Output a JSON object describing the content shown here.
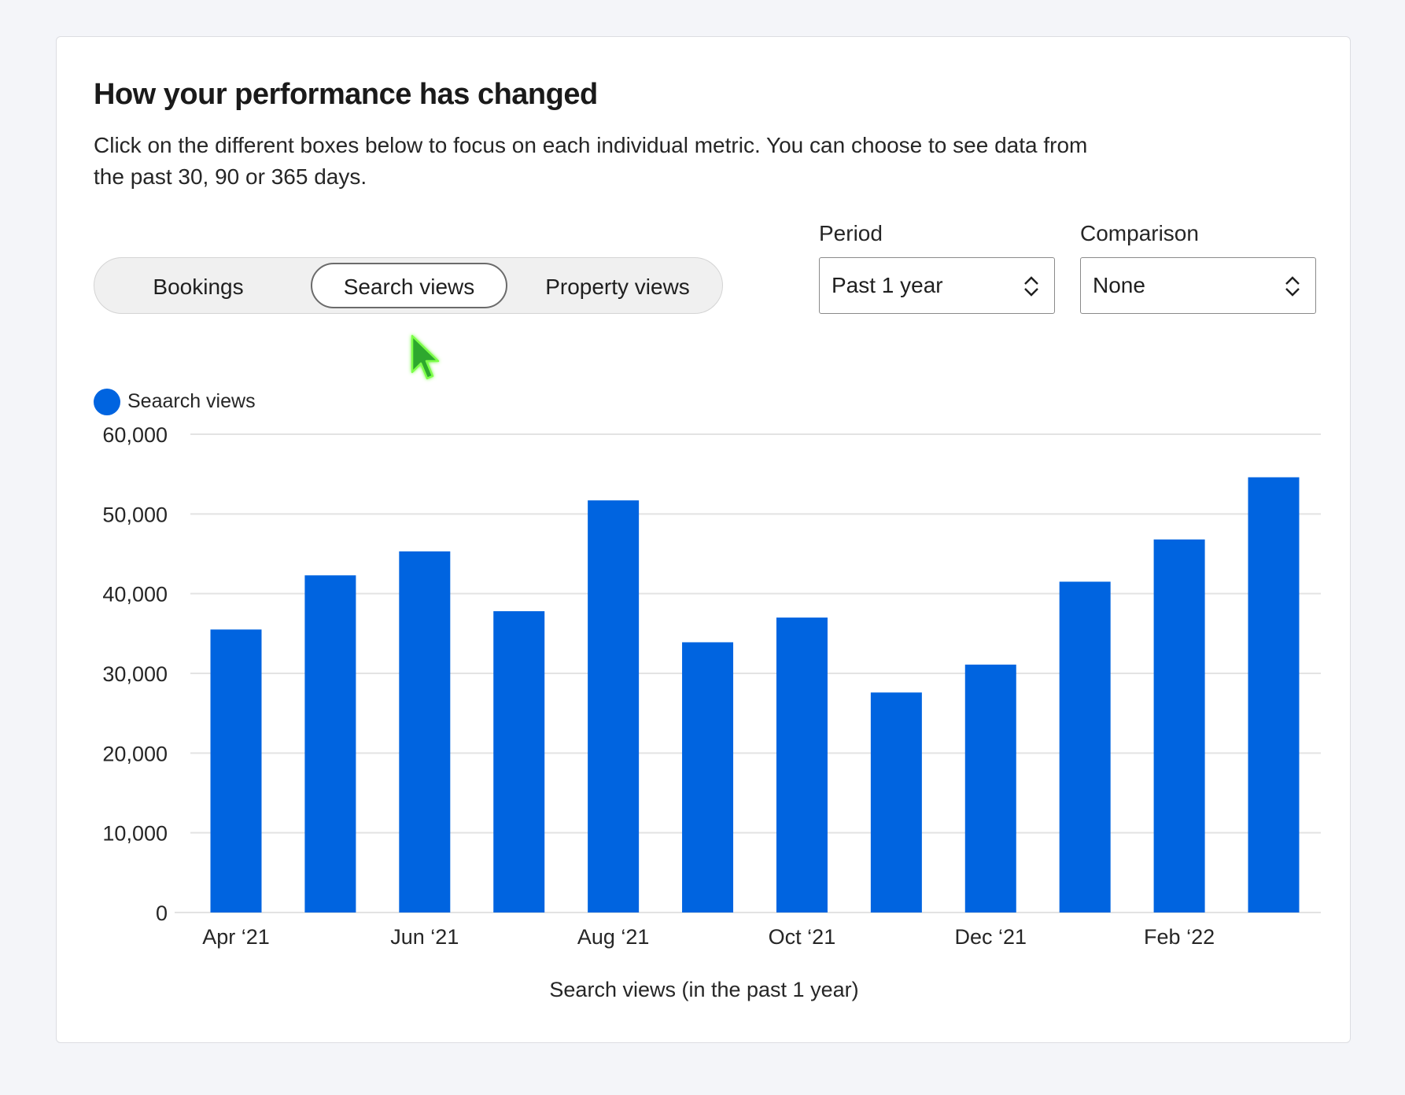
{
  "header": {
    "title": "How your performance has changed",
    "description": "Click on the different boxes below to focus on each individual metric. You can choose to see data from the past 30, 90 or 365 days."
  },
  "metric_tabs": [
    {
      "label": "Bookings",
      "selected": false
    },
    {
      "label": "Search views",
      "selected": true
    },
    {
      "label": "Property views",
      "selected": false
    }
  ],
  "filters": {
    "period": {
      "label": "Period",
      "value": "Past 1 year"
    },
    "comparison": {
      "label": "Comparison",
      "value": "None"
    }
  },
  "colors": {
    "bar": "#0064e0",
    "grid": "#e3e3e3",
    "cursor": "#2ea82e"
  },
  "chart_data": {
    "type": "bar",
    "categories": [
      "Apr ‘21",
      "May ‘21",
      "Jun ‘21",
      "Jul ‘21",
      "Aug ‘21",
      "Sep ‘21",
      "Oct ‘21",
      "Nov ‘21",
      "Dec ‘21",
      "Jan ‘22",
      "Feb ‘22",
      "Mar ‘22"
    ],
    "x_tick_labels": [
      "Apr ‘21",
      "",
      "Jun ‘21",
      "",
      "Aug ‘21",
      "",
      "Oct ‘21",
      "",
      "Dec ‘21",
      "",
      "Feb ‘22",
      ""
    ],
    "series": [
      {
        "name": "Seaarch views",
        "values": [
          35500,
          42300,
          45300,
          37800,
          51700,
          33900,
          37000,
          27600,
          31100,
          41500,
          46800,
          54600
        ]
      }
    ],
    "xlabel": "Search views (in the past 1 year)",
    "ylabel": "",
    "ylim": [
      0,
      60000
    ],
    "y_ticks": [
      0,
      10000,
      20000,
      30000,
      40000,
      50000,
      60000
    ],
    "y_tick_labels": [
      "0",
      "10,000",
      "20,000",
      "30,000",
      "40,000",
      "50,000",
      "60,000"
    ],
    "grid": true,
    "legend": "top-left"
  }
}
